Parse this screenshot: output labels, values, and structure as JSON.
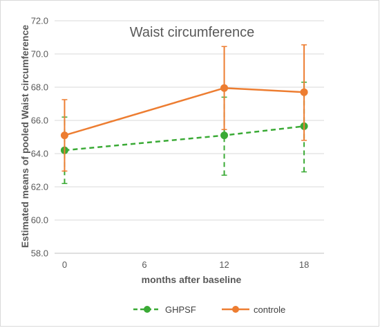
{
  "chart_data": {
    "type": "line",
    "title": "Waist circumference",
    "xlabel": "months after baseline",
    "ylabel": "Estimated means of pooled Waist circumference",
    "x": [
      0,
      12,
      18
    ],
    "x_ticks": [
      "0",
      "6",
      "12",
      "18"
    ],
    "x_tick_values": [
      0,
      6,
      12,
      18
    ],
    "xlim": [
      -0.75,
      19.5
    ],
    "ylim": [
      58,
      72
    ],
    "y_ticks": [
      "58.0",
      "60.0",
      "62.0",
      "64.0",
      "66.0",
      "68.0",
      "70.0",
      "72.0"
    ],
    "y_tick_values": [
      58,
      60,
      62,
      64,
      66,
      68,
      70,
      72
    ],
    "grid": "horizontal",
    "legend": "bottom",
    "series": [
      {
        "name": "GHPSF",
        "color": "#3aaa35",
        "dash": "dashed",
        "values": [
          64.2,
          65.1,
          65.65
        ],
        "err_low": [
          62.2,
          62.7,
          62.9
        ],
        "err_high": [
          66.2,
          67.4,
          68.3
        ]
      },
      {
        "name": "controle",
        "color": "#ed7d31",
        "dash": "solid",
        "values": [
          65.1,
          67.95,
          67.7
        ],
        "err_low": [
          62.95,
          65.45,
          64.8
        ],
        "err_high": [
          67.25,
          70.45,
          70.55
        ]
      }
    ]
  }
}
